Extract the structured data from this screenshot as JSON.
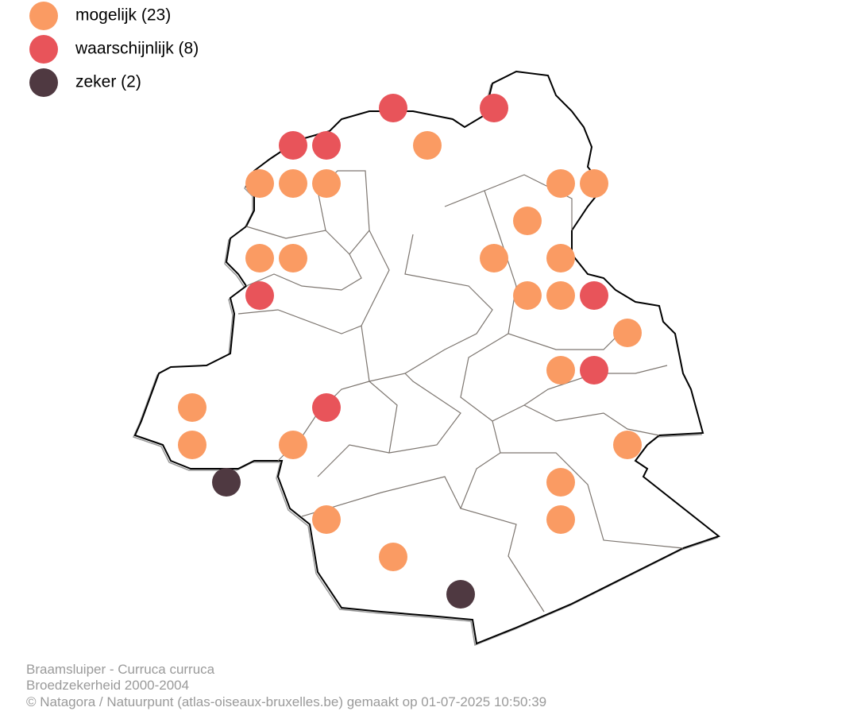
{
  "legend": [
    {
      "label": "mogelijk (23)",
      "color": "#fa9b63"
    },
    {
      "label": "waarschijnlijk (8)",
      "color": "#e8545a"
    },
    {
      "label": "zeker (2)",
      "color": "#4f3941"
    }
  ],
  "caption": {
    "line1": "Braamsluiper - Curruca curruca",
    "line2": "Broedzekerheid 2000-2004",
    "line3": "© Natagora / Natuurpunt (atlas-oiseaux-bruxelles.be) gemaakt op 01-07-2025 10:50:39"
  }
}
